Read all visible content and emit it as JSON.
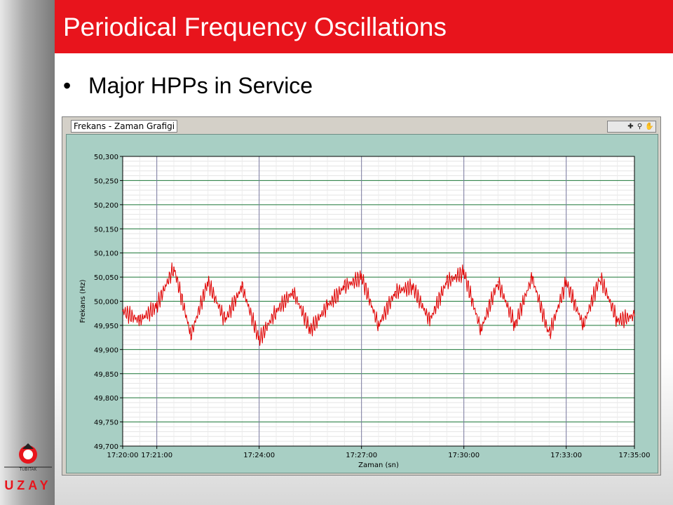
{
  "slide": {
    "title": "Periodical Frequency Oscillations",
    "bullet": "Major HPPs in Service"
  },
  "panel": {
    "title": "Frekans - Zaman Grafigi",
    "toolbar_icons": [
      "crosshair-icon",
      "zoom-icon",
      "pan-icon"
    ]
  },
  "logo": {
    "line1": "TÜBİTAK",
    "line2": "UZAY",
    "colors": {
      "red": "#e8141c",
      "dark": "#222222"
    }
  },
  "colors": {
    "title_bar": "#e8141c",
    "series": "#e00000",
    "plot_bg": "#ffffff",
    "frame": "#a8cfc4",
    "major_grid": "#1e7a3a"
  },
  "chart_data": {
    "type": "line",
    "title": "",
    "xlabel": "Zaman (sn)",
    "ylabel": "Frekans (Hz)",
    "ylim": [
      49.7,
      50.3
    ],
    "xlim": [
      "17:20:00",
      "17:35:00"
    ],
    "yticks": [
      "50,300",
      "50,250",
      "50,200",
      "50,150",
      "50,100",
      "50,050",
      "50,000",
      "49,950",
      "49,900",
      "49,850",
      "49,800",
      "49,750",
      "49,700"
    ],
    "xticks": [
      "17:20:00",
      "17:21:00",
      "17:24:00",
      "17:27:00",
      "17:30:00",
      "17:33:00",
      "17:35:00"
    ],
    "grid": true,
    "series": [
      {
        "x": [
          "17:20:00",
          "17:20:30",
          "17:21:00",
          "17:21:30",
          "17:22:00",
          "17:22:30",
          "17:23:00",
          "17:23:30",
          "17:24:00",
          "17:24:30",
          "17:25:00",
          "17:25:30",
          "17:26:00",
          "17:26:30",
          "17:27:00",
          "17:27:30",
          "17:28:00",
          "17:28:30",
          "17:29:00",
          "17:29:30",
          "17:30:00",
          "17:30:30",
          "17:31:00",
          "17:31:30",
          "17:32:00",
          "17:32:30",
          "17:33:00",
          "17:33:30",
          "17:34:00",
          "17:34:30",
          "17:35:00"
        ],
        "values": [
          49.98,
          49.96,
          49.99,
          50.07,
          49.93,
          50.04,
          49.96,
          50.03,
          49.92,
          49.98,
          50.02,
          49.94,
          49.99,
          50.03,
          50.05,
          49.95,
          50.02,
          50.03,
          49.96,
          50.04,
          50.06,
          49.94,
          50.04,
          49.95,
          50.05,
          49.93,
          50.04,
          49.95,
          50.05,
          49.96,
          49.97
        ]
      }
    ]
  }
}
